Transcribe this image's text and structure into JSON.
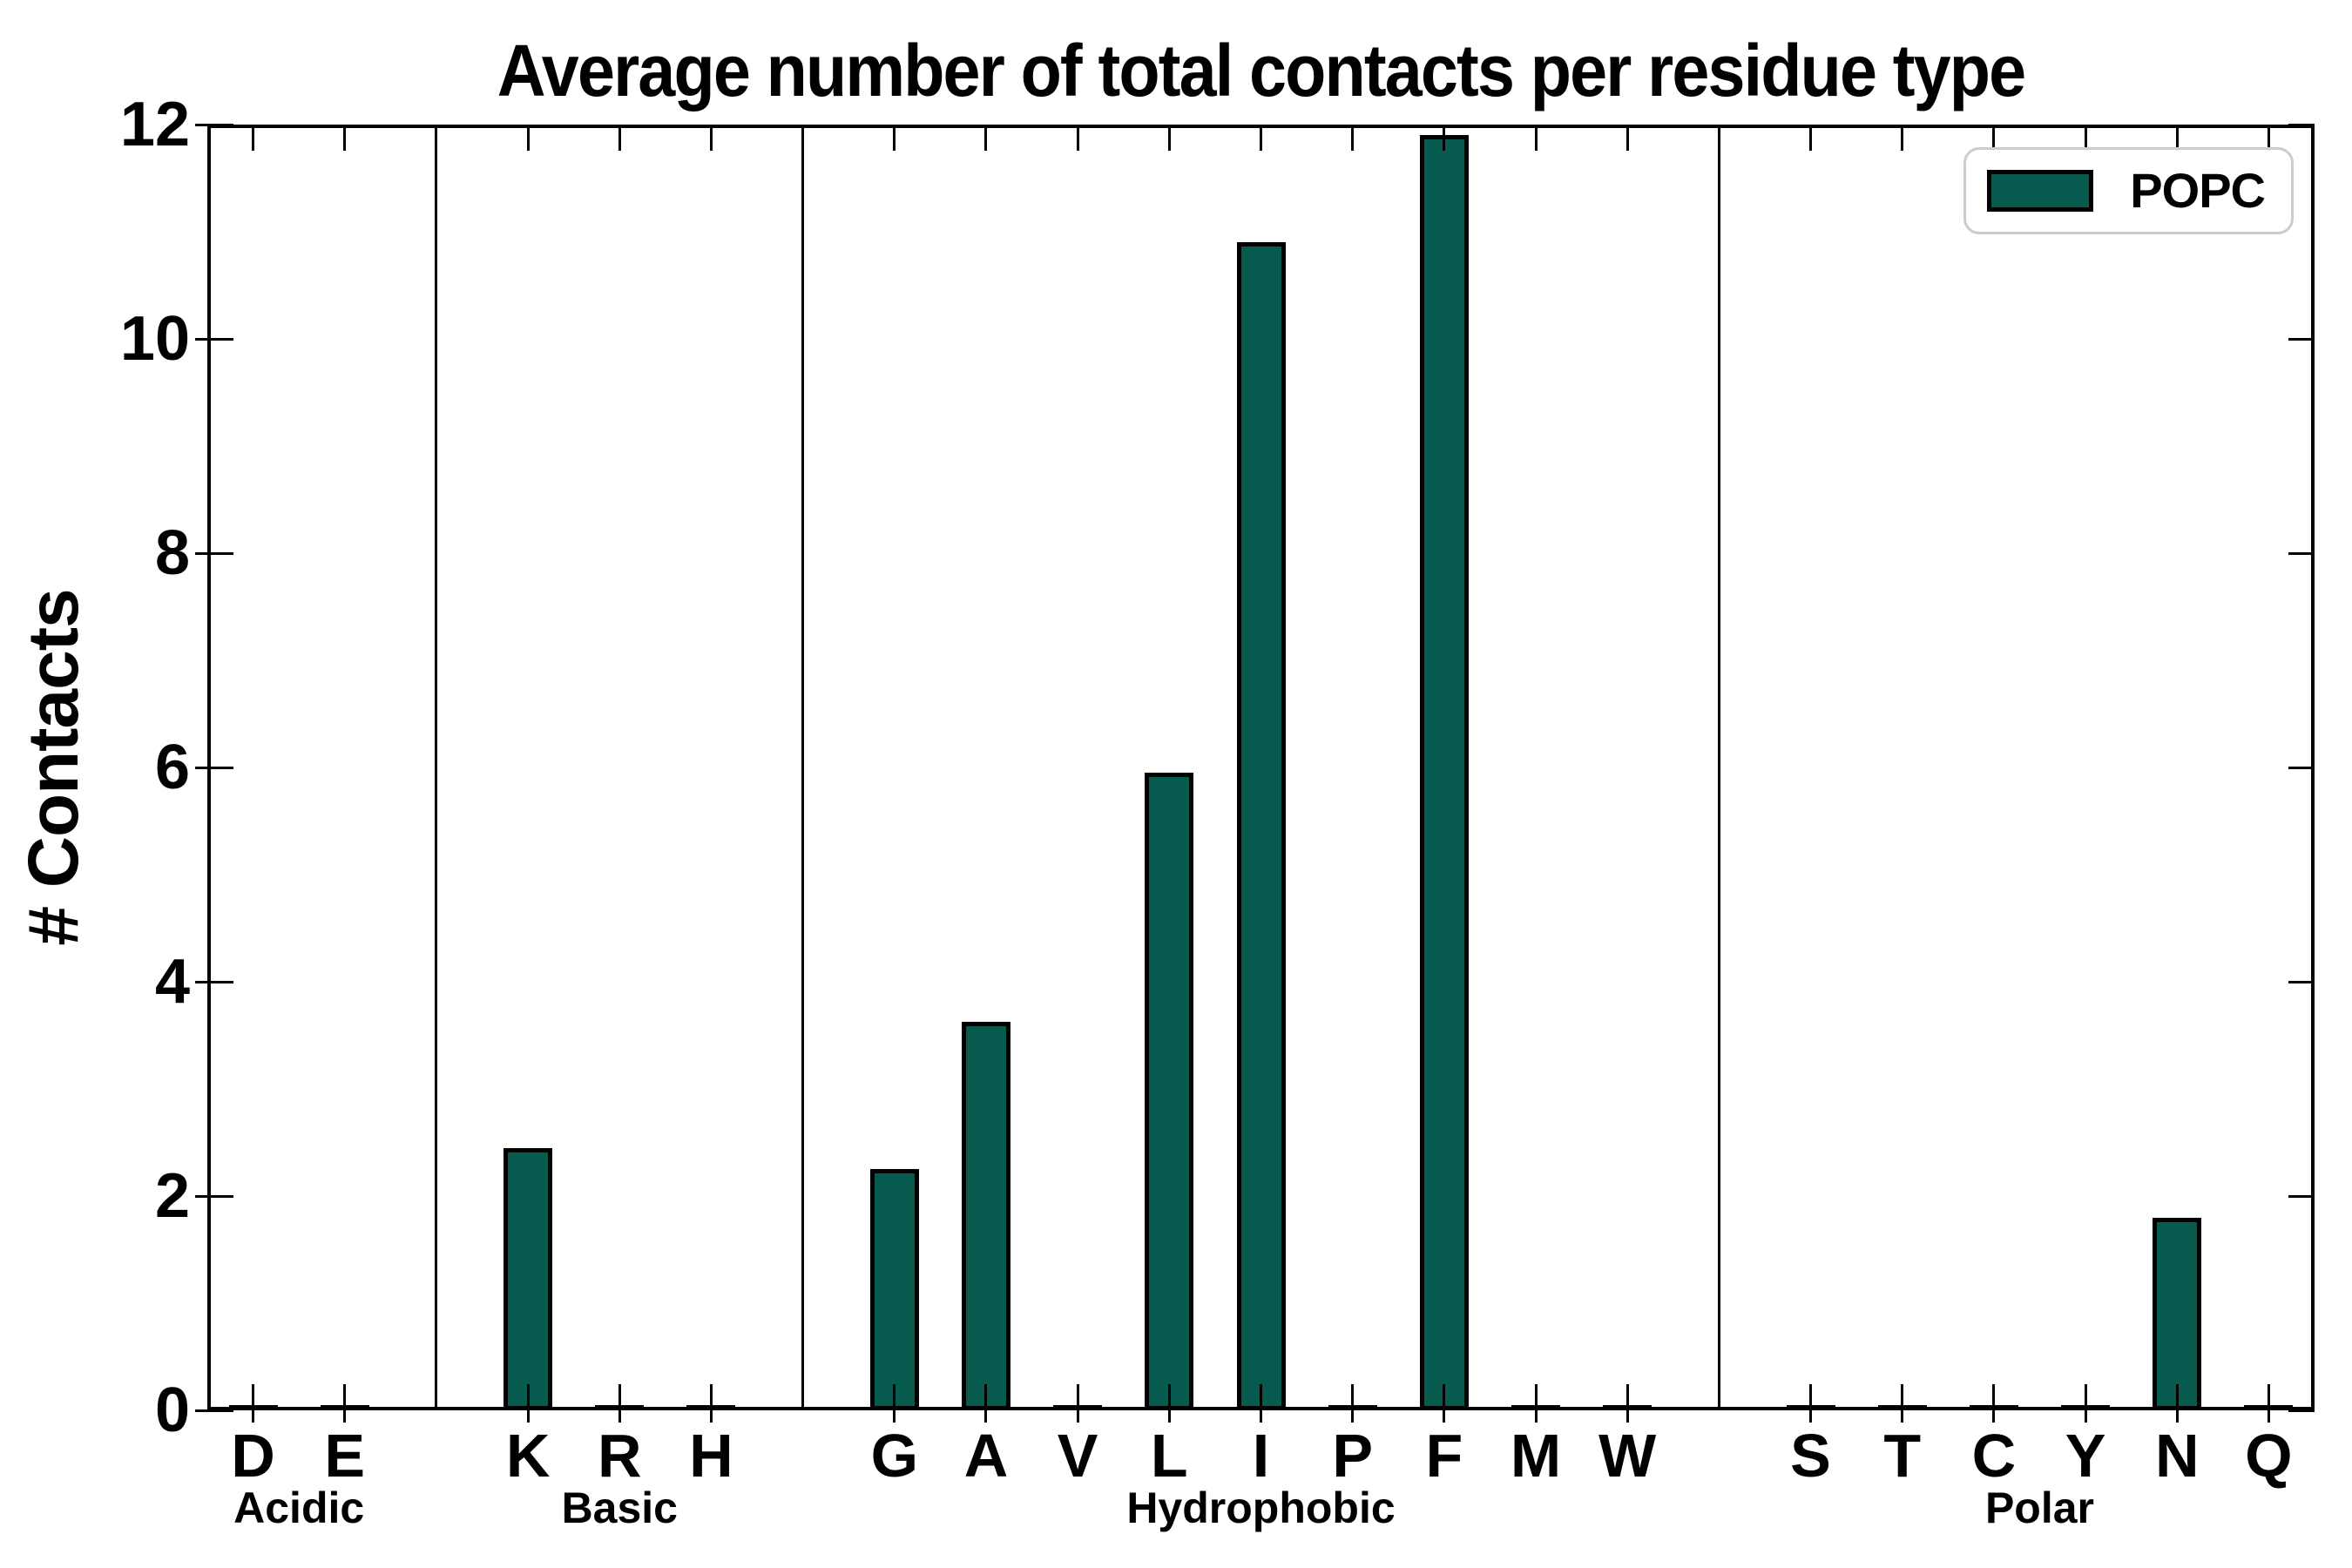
{
  "chart_data": {
    "type": "bar",
    "title": "Average number of total contacts per residue type",
    "ylabel": "# Contacts",
    "ylim": [
      0,
      12
    ],
    "yticks": [
      0,
      2,
      4,
      6,
      8,
      10,
      12
    ],
    "legend_label": "POPC",
    "legend_position": "upper right",
    "grid": false,
    "groups": [
      {
        "name": "Acidic",
        "categories": [
          "D",
          "E"
        ],
        "values": [
          0.02,
          0.02
        ]
      },
      {
        "name": "Basic",
        "categories": [
          "K",
          "R",
          "H"
        ],
        "values": [
          2.45,
          0.02,
          0.02
        ]
      },
      {
        "name": "Hydrophobic",
        "categories": [
          "G",
          "A",
          "V",
          "L",
          "I",
          "P",
          "F",
          "M",
          "W"
        ],
        "values": [
          2.25,
          3.63,
          0.02,
          5.95,
          10.9,
          0.02,
          11.9,
          0.02,
          0.02
        ]
      },
      {
        "name": "Polar",
        "categories": [
          "S",
          "T",
          "C",
          "Y",
          "N",
          "Q"
        ],
        "values": [
          0.02,
          0.02,
          0.02,
          0.02,
          1.8,
          0.02
        ]
      }
    ],
    "colors": {
      "bar_fill": "#075A4E",
      "bar_edge": "#000000",
      "axis": "#000000",
      "legend_border": "#cccccc"
    }
  }
}
